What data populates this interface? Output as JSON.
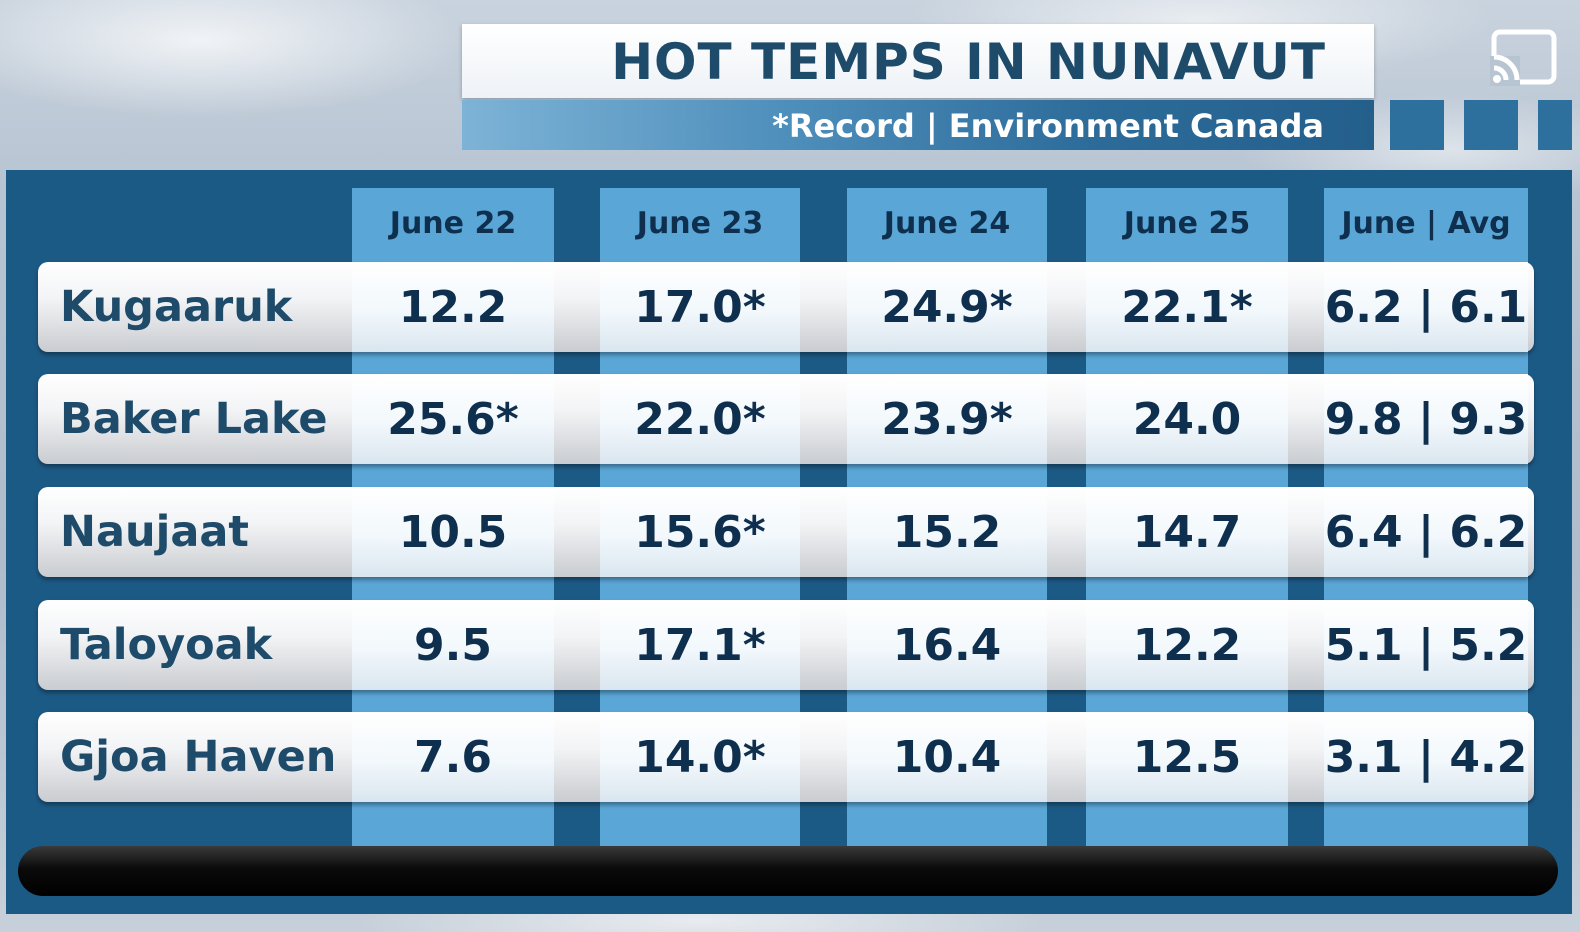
{
  "header": {
    "title": "HOT TEMPS IN NUNAVUT",
    "subtitle": "*Record | Environment Canada"
  },
  "icons": {
    "cast": "cast-icon"
  },
  "colors": {
    "panel": "#1c5a86",
    "column": "#5aa6d7",
    "text_dark": "#0f2f4e",
    "label_text": "#1e4b6a"
  },
  "chart_data": {
    "type": "table",
    "columns": [
      "June 22",
      "June 23",
      "June 24",
      "June 25",
      "June | Avg"
    ],
    "rows": [
      {
        "label": "Kugaaruk",
        "values": [
          "12.2",
          "17.0*",
          "24.9*",
          "22.1*",
          "6.2 | 6.1"
        ]
      },
      {
        "label": "Baker Lake",
        "values": [
          "25.6*",
          "22.0*",
          "23.9*",
          "24.0",
          "9.8 | 9.3"
        ]
      },
      {
        "label": "Naujaat",
        "values": [
          "10.5",
          "15.6*",
          "15.2",
          "14.7",
          "6.4 | 6.2"
        ]
      },
      {
        "label": "Taloyoak",
        "values": [
          "9.5",
          "17.1*",
          "16.4",
          "12.2",
          "5.1 | 5.2"
        ]
      },
      {
        "label": "Gjoa Haven",
        "values": [
          "7.6",
          "14.0*",
          "10.4",
          "12.5",
          "3.1 | 4.2"
        ]
      }
    ]
  }
}
